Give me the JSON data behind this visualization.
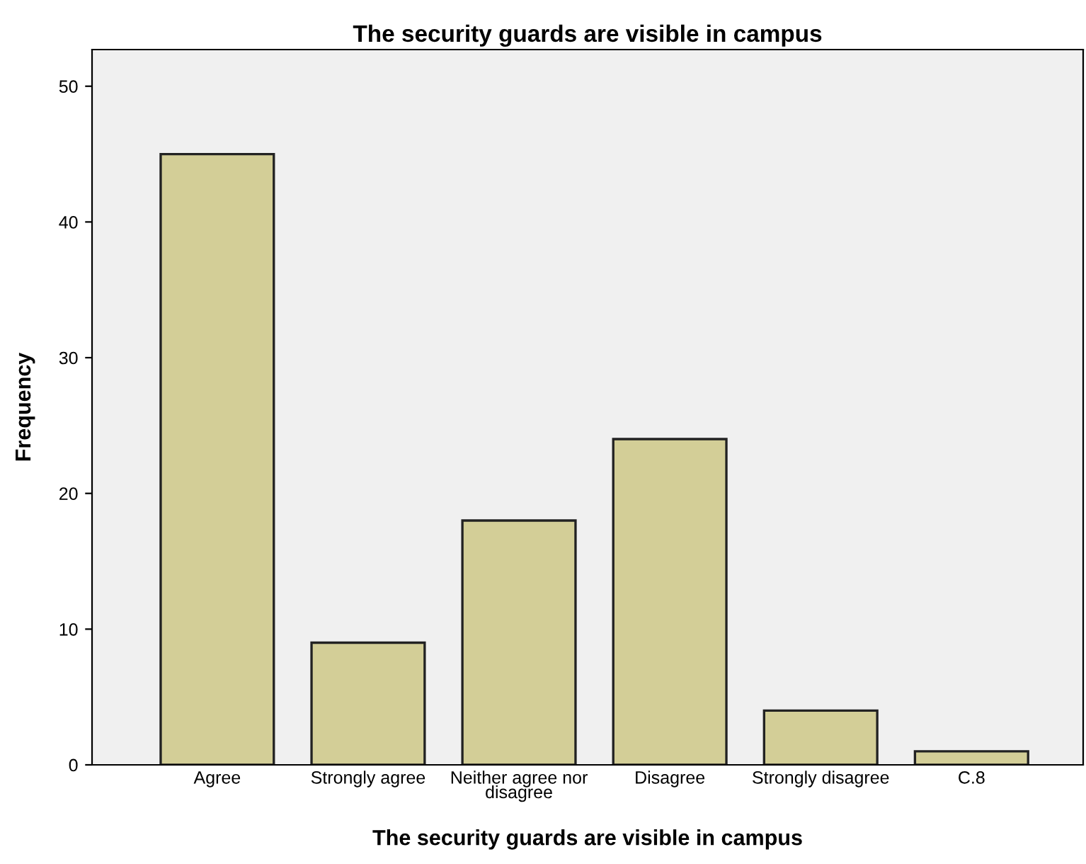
{
  "chart_data": {
    "type": "bar",
    "title": "The security guards are visible in campus",
    "xlabel": "The security guards are visible in campus",
    "ylabel": "Frequency",
    "categories": [
      "Agree",
      "Strongly agree",
      "Neither agree nor disagree",
      "Disagree",
      "Strongly disagree",
      "C.8"
    ],
    "values": [
      45,
      9,
      18,
      24,
      4,
      1
    ],
    "color": "#d3ce97",
    "ylim": [
      0,
      52.7
    ],
    "yticks": [
      0,
      10,
      20,
      30,
      40,
      50
    ],
    "grid": false,
    "legend": false
  }
}
